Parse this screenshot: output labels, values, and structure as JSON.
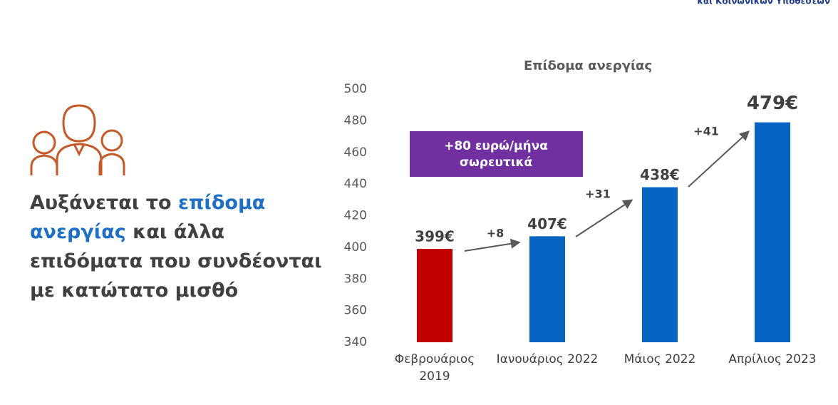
{
  "logo_text": "και Κοινωνικών Υποθέσεων",
  "headline": [
    [
      {
        "text": "Αυξάνεται το ",
        "highlight": false
      },
      {
        "text": "επίδομα",
        "highlight": true
      }
    ],
    [
      {
        "text": "ανεργίας",
        "highlight": true
      },
      {
        "text": " και άλλα",
        "highlight": false
      }
    ],
    [
      {
        "text": "επιδόματα που συνδέονται",
        "highlight": false
      }
    ],
    [
      {
        "text": "με κατώτατο μισθό",
        "highlight": false
      }
    ]
  ],
  "chart_data": {
    "type": "bar",
    "title": "Επίδομα ανεργίας",
    "categories": [
      [
        "Φεβρουάριος",
        "2019"
      ],
      [
        "Ιανουάριος 2022"
      ],
      [
        "Μάιος 2022"
      ],
      [
        "Απρίλιος 2023"
      ]
    ],
    "values": [
      399,
      407,
      438,
      479
    ],
    "value_labels": [
      "399€",
      "407€",
      "438€",
      "479€"
    ],
    "colors": [
      "#c00000",
      "#0563c1",
      "#0563c1",
      "#0563c1"
    ],
    "ylim": [
      340,
      500
    ],
    "yticks": [
      340,
      360,
      380,
      400,
      420,
      440,
      460,
      480,
      500
    ],
    "grid": false,
    "annotations": [
      "+8",
      "+31",
      "+41"
    ],
    "callout": [
      "+80 ευρώ/μήνα",
      "σωρευτικά"
    ]
  }
}
